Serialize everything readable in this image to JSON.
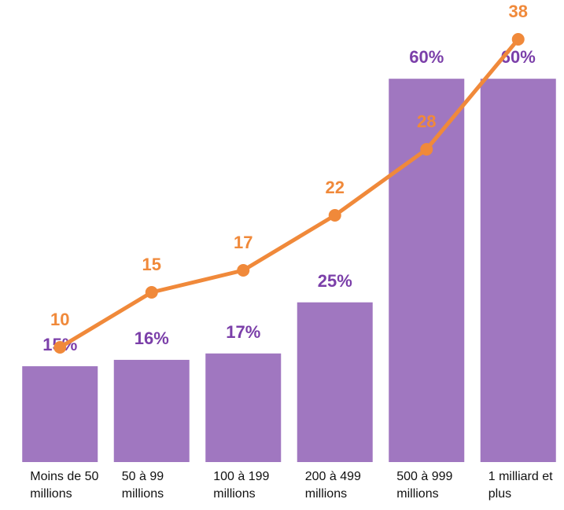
{
  "chart_data": {
    "type": "bar-line",
    "categories": [
      "Moins de 50 millions",
      "50 à 99 millions",
      "100 à 199 millions",
      "200 à 499 millions",
      "500 à 999 millions",
      "1 milliard et plus"
    ],
    "series": [
      {
        "type": "bar",
        "color": "#a077c0",
        "label_color": "#7b3fa9",
        "values": [
          15,
          16,
          17,
          25,
          60,
          60
        ],
        "value_labels": [
          "15%",
          "16%",
          "17%",
          "25%",
          "60%",
          "60%"
        ]
      },
      {
        "type": "line",
        "color": "#f0893a",
        "label_color": "#f0893a",
        "values": [
          10,
          15,
          17,
          22,
          28,
          38
        ]
      }
    ]
  }
}
